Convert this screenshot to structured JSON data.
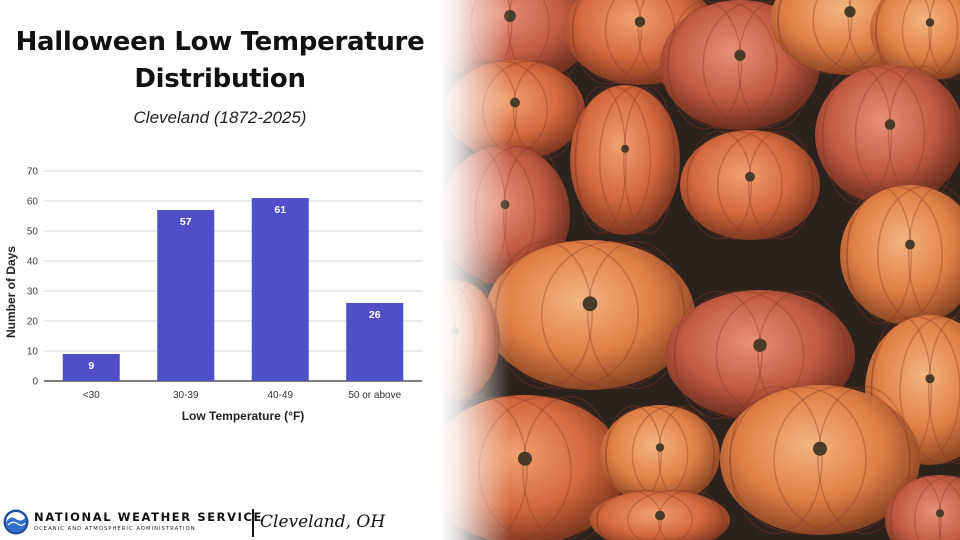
{
  "header": {
    "title_line1": "Halloween Low Temperature",
    "title_line2": "Distribution",
    "subtitle": "Cleveland (1872-2025)"
  },
  "chart_data": {
    "type": "bar",
    "categories": [
      "<30",
      "30-39",
      "40-49",
      "50 or above"
    ],
    "values": [
      9,
      57,
      61,
      26
    ],
    "data_labels": [
      "9",
      "57",
      "61",
      "26"
    ],
    "xlabel": "Low Temperature (°F)",
    "ylabel": "Number of Days",
    "ylim": [
      0,
      70
    ],
    "yticks": [
      "0",
      "10",
      "20",
      "30",
      "40",
      "50",
      "60",
      "70"
    ],
    "grid": true,
    "legend": "none",
    "bar_color": "#4f4fc8"
  },
  "photo": {
    "subject": "pumpkins-photo"
  },
  "footer": {
    "org_name": "NATIONAL WEATHER SERVICE",
    "org_sub": "OCEANIC AND ATMOSPHERIC ADMINISTRATION",
    "office": "Cleveland, OH"
  }
}
